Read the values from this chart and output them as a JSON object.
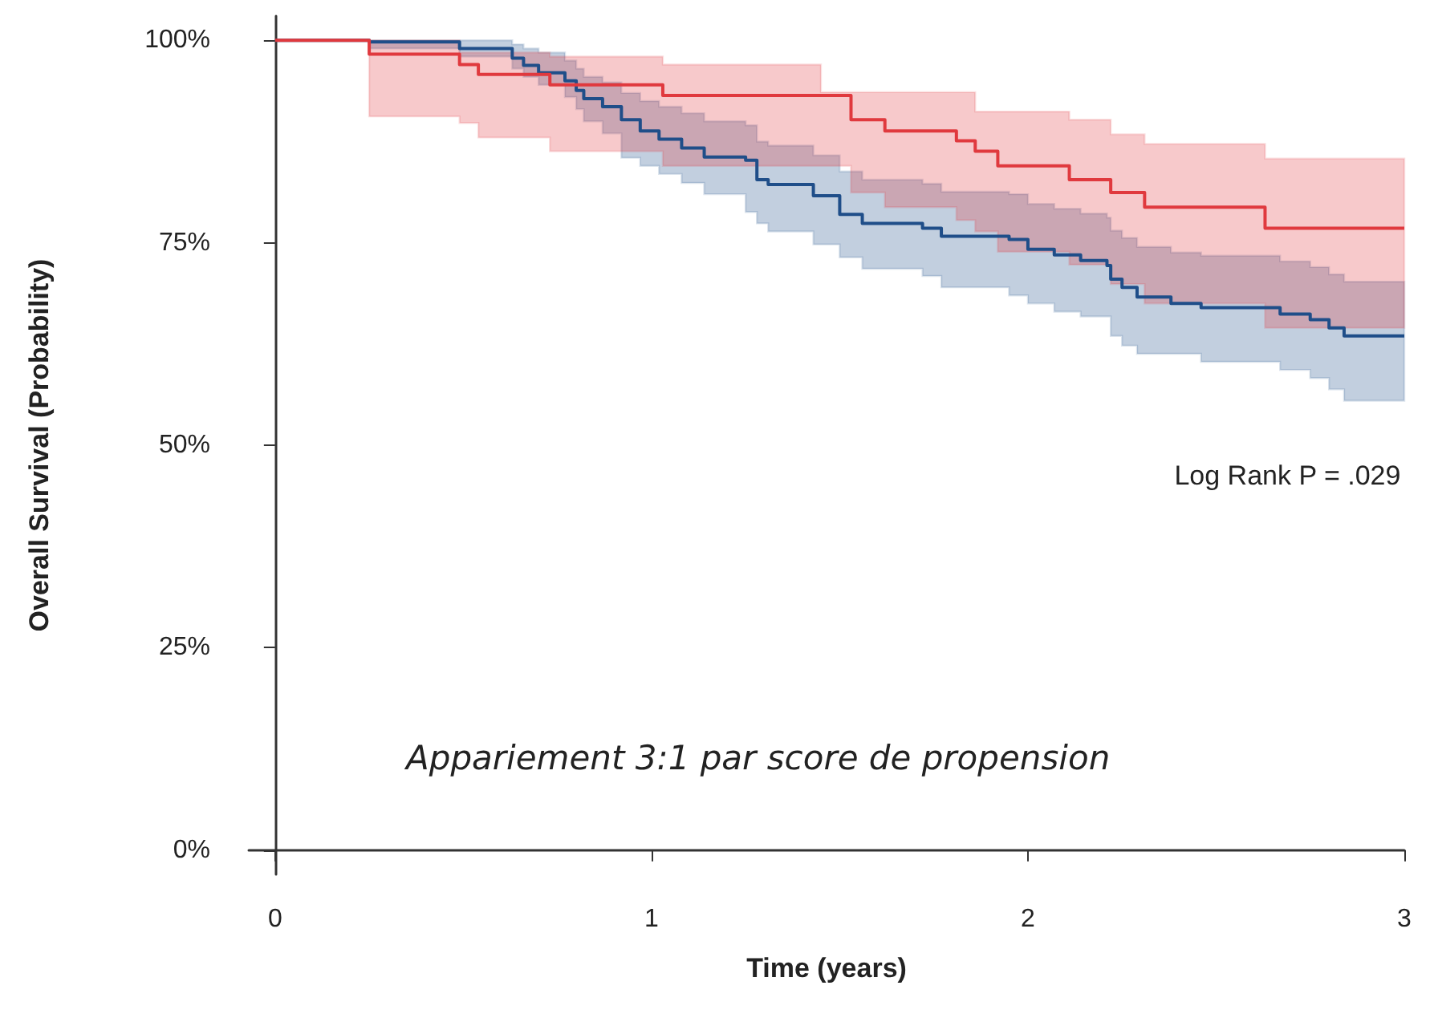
{
  "chart_data": {
    "type": "step",
    "xlabel": "Time (years)",
    "ylabel": "Overall Survival (Probability)",
    "xlim": [
      -0.07,
      3.0
    ],
    "xticks": [
      0,
      1,
      2,
      3
    ],
    "ylim": [
      -3,
      103
    ],
    "yticks": [
      {
        "value": 0,
        "label": "0%"
      },
      {
        "value": 25,
        "label": "25%"
      },
      {
        "value": 50,
        "label": "50%"
      },
      {
        "value": 75,
        "label": "75%"
      },
      {
        "value": 100,
        "label": "100%"
      }
    ],
    "grid": false,
    "marker": "none",
    "line_style": "solid",
    "annotations": [
      "Log Rank P = .029",
      "Appariement 3:1 par score de propension"
    ],
    "series": [
      {
        "color": "#1f4e89",
        "x": [
          0,
          0.25,
          0.49,
          0.63,
          0.66,
          0.7,
          0.77,
          0.8,
          0.82,
          0.87,
          0.92,
          0.97,
          1.02,
          1.08,
          1.14,
          1.25,
          1.28,
          1.31,
          1.43,
          1.5,
          1.56,
          1.72,
          1.77,
          1.95,
          2.0,
          2.07,
          2.14,
          2.21,
          2.22,
          2.25,
          2.29,
          2.38,
          2.46,
          2.67,
          2.75,
          2.8,
          2.84,
          3.0
        ],
        "values": [
          100,
          99.8,
          99.0,
          97.8,
          96.9,
          96.0,
          95.0,
          93.8,
          92.8,
          91.8,
          90.2,
          88.8,
          87.8,
          86.7,
          85.6,
          85.2,
          82.8,
          82.2,
          80.8,
          78.5,
          77.4,
          76.8,
          75.8,
          75.4,
          74.2,
          73.5,
          72.8,
          72.2,
          70.5,
          69.5,
          68.3,
          67.5,
          67.0,
          66.2,
          65.5,
          64.5,
          63.5,
          63.5
        ],
        "lower": [
          100,
          99.0,
          98.0,
          96.5,
          95.5,
          94.5,
          93.0,
          91.5,
          90.0,
          88.5,
          85.5,
          84.5,
          83.5,
          82.4,
          81.0,
          78.8,
          77.4,
          76.4,
          74.8,
          73.2,
          71.8,
          70.9,
          69.5,
          68.5,
          67.5,
          66.5,
          65.9,
          65.9,
          63.5,
          62.3,
          61.3,
          61.3,
          60.3,
          59.3,
          58.3,
          56.9,
          55.5,
          55.5
        ],
        "upper": [
          100,
          100,
          100,
          99.5,
          99.0,
          98.5,
          97.5,
          96.5,
          95.5,
          94.8,
          93.5,
          92.5,
          91.8,
          91.0,
          90.0,
          89.5,
          87.5,
          87.0,
          85.8,
          83.8,
          82.8,
          82.3,
          81.3,
          81.0,
          79.8,
          79.2,
          78.6,
          78.1,
          76.5,
          75.6,
          74.5,
          73.8,
          73.4,
          72.7,
          72.0,
          71.1,
          70.2,
          70.2
        ]
      },
      {
        "color": "#e0393e",
        "x": [
          0,
          0.25,
          0.49,
          0.54,
          0.73,
          1.03,
          1.45,
          1.53,
          1.62,
          1.81,
          1.86,
          1.92,
          2.11,
          2.22,
          2.31,
          2.63,
          3.0
        ],
        "values": [
          100,
          98.3,
          97.0,
          95.8,
          94.5,
          93.2,
          93.2,
          90.2,
          88.8,
          87.6,
          86.3,
          84.5,
          82.8,
          81.2,
          79.4,
          76.8,
          76.8
        ],
        "lower": [
          100,
          90.6,
          89.8,
          88.0,
          86.3,
          84.5,
          84.5,
          81.2,
          79.4,
          77.8,
          76.4,
          73.9,
          72.3,
          69.9,
          67.5,
          64.5,
          64.5
        ],
        "upper": [
          100,
          100,
          98.5,
          98.5,
          98.0,
          97.0,
          93.6,
          93.6,
          93.6,
          93.6,
          91.2,
          91.2,
          90.2,
          88.4,
          87.2,
          85.4,
          85.4
        ]
      }
    ]
  }
}
